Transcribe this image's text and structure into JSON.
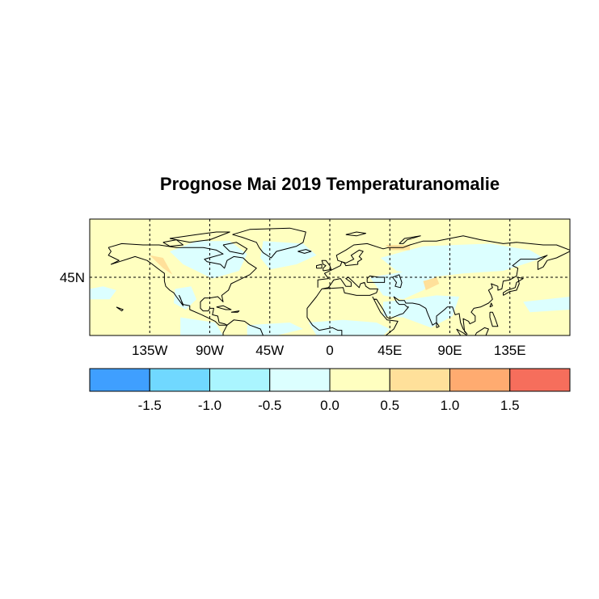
{
  "chart_data": {
    "type": "heatmap",
    "title": "Prognose Mai 2019 Temperaturanomalie",
    "projection": "cylindrical equidistant",
    "lon_range": [
      -180,
      180
    ],
    "lat_range": [
      0,
      90
    ],
    "grid": true,
    "x_ticks": [
      {
        "value": -135,
        "label": "135W"
      },
      {
        "value": -90,
        "label": "90W"
      },
      {
        "value": -45,
        "label": "45W"
      },
      {
        "value": 0,
        "label": "0"
      },
      {
        "value": 45,
        "label": "45E"
      },
      {
        "value": 90,
        "label": "90E"
      },
      {
        "value": 135,
        "label": "135E"
      }
    ],
    "y_ticks": [
      {
        "value": 45,
        "label": "45N"
      }
    ],
    "colorbar": {
      "placement": "bottom",
      "levels": [
        "-1.5",
        "-1.0",
        "-0.5",
        "0.0",
        "0.5",
        "1.0",
        "1.5"
      ],
      "colors": [
        "#3f9fff",
        "#70d8ff",
        "#aaf5ff",
        "#dcffff",
        "#ffffc0",
        "#ffe09a",
        "#ffab70",
        "#f66e5c"
      ]
    },
    "background_class": "0.0 to 0.5",
    "regions": [
      {
        "class": "-0.5 to 0.0",
        "lonlat": [
          [
            -120,
            65
          ],
          [
            -100,
            73
          ],
          [
            -75,
            73
          ],
          [
            -62,
            63
          ],
          [
            -68,
            50
          ],
          [
            -88,
            44
          ],
          [
            -110,
            55
          ]
        ]
      },
      {
        "class": "-0.5 to 0.0",
        "lonlat": [
          [
            -50,
            73
          ],
          [
            -20,
            71
          ],
          [
            -10,
            62
          ],
          [
            -25,
            55
          ],
          [
            -45,
            51
          ],
          [
            -52,
            60
          ]
        ]
      },
      {
        "class": "-0.5 to 0.0",
        "lonlat": [
          [
            -180,
            36
          ],
          [
            -170,
            38
          ],
          [
            -160,
            35
          ],
          [
            -165,
            28
          ],
          [
            -180,
            28
          ]
        ]
      },
      {
        "class": "-0.5 to 0.0",
        "lonlat": [
          [
            -116,
            36
          ],
          [
            -104,
            38
          ],
          [
            -100,
            28
          ],
          [
            -108,
            20
          ],
          [
            -117,
            25
          ]
        ]
      },
      {
        "class": "-0.5 to 0.0",
        "lonlat": [
          [
            38,
            60
          ],
          [
            70,
            69
          ],
          [
            120,
            71
          ],
          [
            150,
            66
          ],
          [
            160,
            60
          ],
          [
            130,
            50
          ],
          [
            100,
            48
          ],
          [
            75,
            45
          ],
          [
            50,
            50
          ]
        ]
      },
      {
        "class": "-0.5 to 0.0",
        "lonlat": [
          [
            30,
            45
          ],
          [
            60,
            50
          ],
          [
            80,
            45
          ],
          [
            70,
            35
          ],
          [
            55,
            28
          ],
          [
            40,
            31
          ]
        ]
      },
      {
        "class": "-0.5 to 0.0",
        "lonlat": [
          [
            40,
            26
          ],
          [
            60,
            28
          ],
          [
            80,
            31
          ],
          [
            97,
            30
          ],
          [
            92,
            15
          ],
          [
            76,
            6
          ],
          [
            55,
            14
          ],
          [
            40,
            15
          ]
        ]
      },
      {
        "class": "-0.5 to 0.0",
        "lonlat": [
          [
            145,
            26
          ],
          [
            180,
            30
          ],
          [
            180,
            20
          ],
          [
            150,
            18
          ]
        ]
      },
      {
        "class": "-0.5 to 0.0",
        "lonlat": [
          [
            -16,
            10
          ],
          [
            10,
            12
          ],
          [
            35,
            10
          ],
          [
            45,
            5
          ],
          [
            40,
            0
          ],
          [
            -10,
            0
          ]
        ]
      },
      {
        "class": "-0.5 to 0.0",
        "lonlat": [
          [
            -62,
            8
          ],
          [
            -30,
            10
          ],
          [
            -20,
            5
          ],
          [
            -40,
            0
          ],
          [
            -62,
            0
          ]
        ]
      },
      {
        "class": "-0.5 to 0.0",
        "lonlat": [
          [
            -112,
            14
          ],
          [
            -86,
            10
          ],
          [
            -80,
            0
          ],
          [
            -112,
            0
          ]
        ]
      },
      {
        "class": "0.5 to 1.0",
        "lonlat": [
          [
            42,
            70
          ],
          [
            60,
            70
          ],
          [
            60,
            66
          ],
          [
            45,
            66
          ]
        ]
      },
      {
        "class": "0.5 to 1.0",
        "lonlat": [
          [
            70,
            42
          ],
          [
            80,
            45
          ],
          [
            82,
            40
          ],
          [
            72,
            35
          ]
        ]
      },
      {
        "class": "0.5 to 1.0",
        "lonlat": [
          [
            -135,
            62
          ],
          [
            -125,
            60
          ],
          [
            -118,
            47
          ],
          [
            -125,
            52
          ]
        ]
      }
    ]
  }
}
